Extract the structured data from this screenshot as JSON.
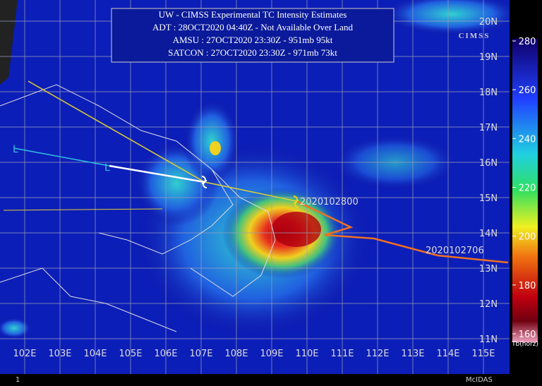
{
  "header": {
    "lines": [
      "UW - CIMSS Experimental TC Intensity Estimates",
      "ADT : 28OCT2020 04:40Z -  Not Available  Over Land",
      "AMSU : 27OCT2020 23:30Z -  951mb  95kt",
      "SATCON : 27OCT2020 23:30Z -  971mb  73kt"
    ]
  },
  "logo": "CIMSS",
  "latitude_labels": [
    "20N",
    "19N",
    "18N",
    "17N",
    "16N",
    "15N",
    "14N",
    "13N",
    "12N",
    "11N"
  ],
  "longitude_labels": [
    "102E",
    "103E",
    "104E",
    "105E",
    "106E",
    "107E",
    "108E",
    "109E",
    "110E",
    "111E",
    "112E",
    "113E",
    "114E",
    "115E"
  ],
  "track_labels": [
    "2020102800",
    "2020102706"
  ],
  "low_markers": [
    "L",
    "L"
  ],
  "colorbar": {
    "ticks": [
      280,
      260,
      240,
      220,
      200,
      180,
      160
    ],
    "label": "Tb(horz)"
  },
  "footer": {
    "frame": "1",
    "software": "McIDAS"
  }
}
